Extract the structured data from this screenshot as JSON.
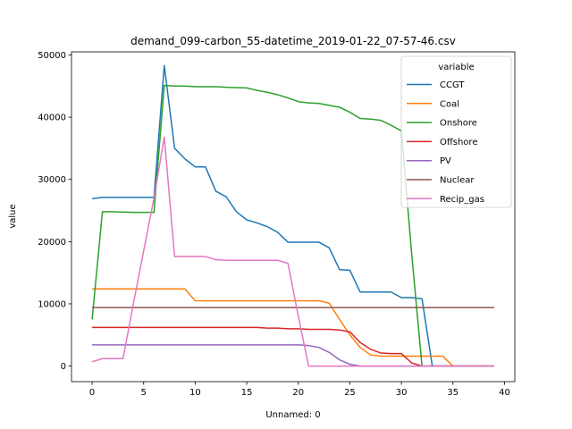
{
  "chart_data": {
    "type": "line",
    "title": "demand_099-carbon_55-datetime_2019-01-22_07-57-46.csv",
    "xlabel": "Unnamed: 0",
    "ylabel": "value",
    "xlim": [
      -2,
      41
    ],
    "ylim": [
      -2500,
      50500
    ],
    "xticks": [
      0,
      5,
      10,
      15,
      20,
      25,
      30,
      35,
      40
    ],
    "yticks": [
      0,
      10000,
      20000,
      30000,
      40000,
      50000
    ],
    "grid": false,
    "legend": {
      "title": "variable",
      "placement": "upper-right"
    },
    "x": [
      0,
      1,
      2,
      3,
      4,
      5,
      6,
      7,
      8,
      9,
      10,
      11,
      12,
      13,
      14,
      15,
      16,
      17,
      18,
      19,
      20,
      21,
      22,
      23,
      24,
      25,
      26,
      27,
      28,
      29,
      30,
      31,
      32,
      33,
      34,
      35,
      36,
      37,
      38,
      39
    ],
    "series": [
      {
        "name": "CCGT",
        "color": "#1f77b4",
        "values": [
          26900,
          27100,
          27100,
          27100,
          27100,
          27100,
          27100,
          48300,
          35000,
          33300,
          32000,
          32000,
          28100,
          27200,
          24800,
          23500,
          23000,
          22400,
          21500,
          19900,
          19900,
          19900,
          19900,
          19000,
          15500,
          15400,
          11900,
          11900,
          11900,
          11900,
          11000,
          11000,
          10800,
          0,
          0,
          0,
          0,
          0,
          0,
          0
        ]
      },
      {
        "name": "Coal",
        "color": "#ff7f0e",
        "values": [
          12400,
          12400,
          12400,
          12400,
          12400,
          12400,
          12400,
          12400,
          12400,
          12400,
          10500,
          10500,
          10500,
          10500,
          10500,
          10500,
          10500,
          10500,
          10500,
          10500,
          10500,
          10500,
          10500,
          10100,
          7500,
          5000,
          3000,
          1800,
          1600,
          1600,
          1600,
          1600,
          1600,
          1600,
          1600,
          0,
          0,
          0,
          0,
          0
        ]
      },
      {
        "name": "Onshore",
        "color": "#2ca02c",
        "values": [
          7500,
          24800,
          24800,
          24750,
          24700,
          24700,
          24700,
          45100,
          45000,
          45000,
          44900,
          44900,
          44900,
          44800,
          44750,
          44700,
          44300,
          44000,
          43600,
          43100,
          42500,
          42300,
          42200,
          41900,
          41600,
          40800,
          39800,
          39700,
          39500,
          38700,
          37800,
          18000,
          0,
          0,
          0,
          0,
          0,
          0,
          0,
          0
        ]
      },
      {
        "name": "Offshore",
        "color": "#d62728",
        "values": [
          6200,
          6200,
          6200,
          6200,
          6200,
          6200,
          6200,
          6200,
          6200,
          6200,
          6200,
          6200,
          6200,
          6200,
          6200,
          6200,
          6200,
          6100,
          6100,
          6000,
          6000,
          5900,
          5900,
          5900,
          5800,
          5500,
          3800,
          2700,
          2100,
          2000,
          2000,
          500,
          0,
          0,
          0,
          0,
          0,
          0,
          0,
          0
        ]
      },
      {
        "name": "PV",
        "color": "#9467bd",
        "values": [
          3400,
          3400,
          3400,
          3400,
          3400,
          3400,
          3400,
          3400,
          3400,
          3400,
          3400,
          3400,
          3400,
          3400,
          3400,
          3400,
          3400,
          3400,
          3400,
          3400,
          3400,
          3300,
          3000,
          2200,
          1000,
          300,
          0,
          0,
          0,
          0,
          0,
          0,
          0,
          0,
          0,
          0,
          0,
          0,
          0,
          0
        ]
      },
      {
        "name": "Nuclear",
        "color": "#8c564b",
        "values": [
          9400,
          9400,
          9400,
          9400,
          9400,
          9400,
          9400,
          9400,
          9400,
          9400,
          9400,
          9400,
          9400,
          9400,
          9400,
          9400,
          9400,
          9400,
          9400,
          9400,
          9400,
          9400,
          9400,
          9400,
          9400,
          9400,
          9400,
          9400,
          9400,
          9400,
          9400,
          9400,
          9400,
          9400,
          9400,
          9400,
          9400,
          9400,
          9400,
          9400
        ]
      },
      {
        "name": "Recip_gas",
        "color": "#e377c2",
        "values": [
          700,
          1200,
          1200,
          1200,
          10000,
          18500,
          27000,
          36800,
          17600,
          17600,
          17600,
          17600,
          17100,
          17000,
          17000,
          17000,
          17000,
          17000,
          17000,
          16500,
          8000,
          0,
          0,
          0,
          0,
          0,
          0,
          0,
          0,
          0,
          0,
          0,
          0,
          0,
          0,
          0,
          0,
          0,
          0,
          0
        ]
      }
    ]
  }
}
